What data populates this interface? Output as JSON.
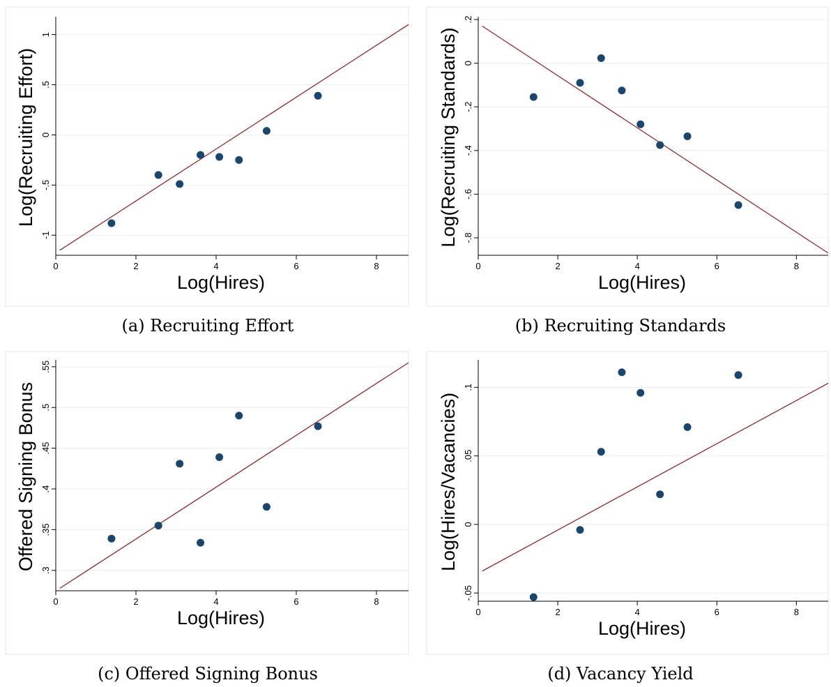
{
  "chart_data": [
    {
      "type": "scatter",
      "caption": "(a) Recruiting Effort",
      "xlabel": "Log(Hires)",
      "ylabel": "Log(Recruiting Effort)",
      "xlim": [
        0,
        8.8
      ],
      "ylim": [
        -1.2,
        1.15
      ],
      "xticks": [
        0,
        2,
        4,
        6,
        8
      ],
      "xtick_labels": [
        "0",
        "2",
        "4",
        "6",
        "8"
      ],
      "yticks": [
        -1,
        -0.5,
        0,
        0.5,
        1
      ],
      "ytick_labels": [
        "-1",
        "-.5",
        "0",
        ".5",
        "1"
      ],
      "points": {
        "x": [
          1.39,
          2.56,
          3.09,
          3.61,
          4.08,
          4.57,
          5.26,
          6.54
        ],
        "y": [
          -0.88,
          -0.4,
          -0.49,
          -0.2,
          -0.22,
          -0.25,
          0.04,
          0.39
        ]
      },
      "fit_line": {
        "x": [
          0.1,
          8.8
        ],
        "y": [
          -1.15,
          1.1
        ]
      },
      "grid": true,
      "colors": {
        "markers": "#1a466e",
        "fit_line": "#8b2b2b"
      }
    },
    {
      "type": "scatter",
      "caption": "(b) Recruiting Standards",
      "xlabel": "Log(Hires)",
      "ylabel": "Log(Recruiting Standards)",
      "xlim": [
        0,
        8.8
      ],
      "ylim": [
        -0.88,
        0.2
      ],
      "xticks": [
        0,
        2,
        4,
        6,
        8
      ],
      "xtick_labels": [
        "0",
        "2",
        "4",
        "6",
        "8"
      ],
      "yticks": [
        -0.8,
        -0.6,
        -0.4,
        -0.2,
        0,
        0.2
      ],
      "ytick_labels": [
        "-.8",
        "-.6",
        "-.4",
        "-.2",
        "0",
        ".2"
      ],
      "points": {
        "x": [
          1.39,
          2.56,
          3.09,
          3.61,
          4.08,
          4.57,
          5.26,
          6.54
        ],
        "y": [
          -0.155,
          -0.09,
          0.023,
          -0.125,
          -0.28,
          -0.375,
          -0.335,
          -0.65
        ]
      },
      "fit_line": {
        "x": [
          0.1,
          8.8
        ],
        "y": [
          0.17,
          -0.87
        ]
      },
      "grid": true,
      "colors": {
        "markers": "#1a466e",
        "fit_line": "#8b2b2b"
      }
    },
    {
      "type": "scatter",
      "caption": "(c) Offered Signing Bonus",
      "xlabel": "Log(Hires)",
      "ylabel": "Offered Signing Bonus",
      "xlim": [
        0,
        8.8
      ],
      "ylim": [
        0.275,
        0.555
      ],
      "xticks": [
        0,
        2,
        4,
        6,
        8
      ],
      "xtick_labels": [
        "0",
        "2",
        "4",
        "6",
        "8"
      ],
      "yticks": [
        0.3,
        0.35,
        0.4,
        0.45,
        0.5,
        0.55
      ],
      "ytick_labels": [
        ".3",
        ".35",
        ".4",
        ".45",
        ".5",
        ".55"
      ],
      "points": {
        "x": [
          1.39,
          2.56,
          3.09,
          3.61,
          4.08,
          4.57,
          5.26,
          6.54
        ],
        "y": [
          0.339,
          0.355,
          0.431,
          0.334,
          0.439,
          0.49,
          0.378,
          0.477
        ]
      },
      "fit_line": {
        "x": [
          0.1,
          8.8
        ],
        "y": [
          0.278,
          0.555
        ]
      },
      "grid": true,
      "colors": {
        "markers": "#1a466e",
        "fit_line": "#8b2b2b"
      }
    },
    {
      "type": "scatter",
      "caption": "(d) Vacancy Yield",
      "xlabel": "Log(Hires)",
      "ylabel": "Log(Hires/Vacancies)",
      "xlim": [
        0,
        8.8
      ],
      "ylim": [
        -0.056,
        0.118
      ],
      "xticks": [
        0,
        2,
        4,
        6,
        8
      ],
      "xtick_labels": [
        "0",
        "2",
        "4",
        "6",
        "8"
      ],
      "yticks": [
        -0.05,
        0,
        0.05,
        0.1
      ],
      "ytick_labels": [
        "-.05",
        "0",
        ".05",
        ".1"
      ],
      "points": {
        "x": [
          1.39,
          2.56,
          3.09,
          3.61,
          4.08,
          4.57,
          5.26,
          6.54
        ],
        "y": [
          -0.053,
          -0.004,
          0.053,
          0.111,
          0.096,
          0.022,
          0.071,
          0.109
        ]
      },
      "fit_line": {
        "x": [
          0.1,
          8.8
        ],
        "y": [
          -0.034,
          0.103
        ]
      },
      "grid": true,
      "colors": {
        "markers": "#1a466e",
        "fit_line": "#8b2b2b"
      }
    }
  ]
}
